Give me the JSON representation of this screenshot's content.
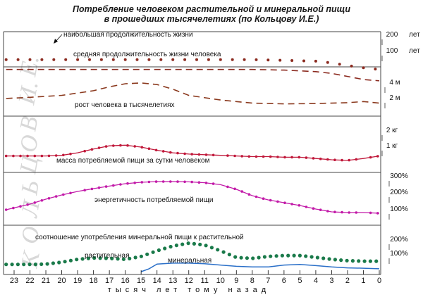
{
  "title_line1": "Потребление человеком растительной и минеральной пищи",
  "title_line2": "в прошедших тысячелетиях (по Кольцову И.Е.)",
  "watermark": [
    "К",
    "О",
    "Л",
    "Ь",
    "Ц",
    "О",
    "В",
    "И.",
    "Е."
  ],
  "colors": {
    "lifespan": "#8b2a1f",
    "height": "#8b3a1f",
    "food_mass": "#c0183a",
    "energy": "#c21aa8",
    "plant": "#1a7a4a",
    "mineral": "#2a6fc8",
    "grid": "#444444"
  },
  "chart_data": {
    "type": "line",
    "title": "Потребление человеком растительной и минеральной пищи в прошедших тысячелетиях (по Кольцову И.Е.)",
    "xlabel": "тысяч лет тому назад",
    "x_ticks": [
      23,
      22,
      21,
      20,
      19,
      18,
      17,
      16,
      15,
      14,
      13,
      12,
      11,
      10,
      9,
      8,
      7,
      6,
      5,
      4,
      3,
      2,
      1,
      0
    ],
    "xlim": [
      23,
      0
    ],
    "panels": [
      {
        "id": "lifespan",
        "unit_ticks": [
          "200",
          "100"
        ],
        "unit_labels": [
          "лет",
          "лет"
        ],
        "series": [
          {
            "name": "наибольшая продолжительность жизни",
            "style": "dotted",
            "x": [
              23.5,
              22,
              20,
              18,
              16,
              14,
              12,
              10,
              8,
              6,
              4,
              3,
              2,
              1,
              0
            ],
            "y": [
              175,
              175,
              175,
              175,
              175,
              175,
              175,
              175,
              175,
              172,
              168,
              160,
              148,
              138,
              130
            ]
          },
          {
            "name": "средняя продолжительность жизни человека",
            "style": "dashed",
            "x": [
              23.5,
              20,
              16,
              12,
              8,
              6,
              4,
              3,
              2,
              1,
              0
            ],
            "y": [
              130,
              130,
              130,
              130,
              130,
              127,
              120,
              112,
              98,
              84,
              78
            ]
          }
        ]
      },
      {
        "id": "height",
        "unit_ticks": [
          "4 м",
          "2 м"
        ],
        "series": [
          {
            "name": "рост человека в тысячелетиях",
            "style": "dashed",
            "x": [
              23.5,
              22,
              20,
              18,
              17,
              16,
              15,
              14,
              13,
              12,
              10,
              8,
              6,
              4,
              2,
              1,
              0
            ],
            "y": [
              2.1,
              2.25,
              2.5,
              3.1,
              3.6,
              4.0,
              4.1,
              3.9,
              3.3,
              2.5,
              1.9,
              1.5,
              1.4,
              1.45,
              1.55,
              1.7,
              1.5
            ]
          }
        ]
      },
      {
        "id": "food_mass",
        "unit_ticks": [
          "2 кг",
          "1 кг"
        ],
        "series": [
          {
            "name": "масса потребляемой пищи за сутки человеком",
            "style": "dot-line",
            "x": [
              23.5,
              22,
              21,
              20,
              19,
              18,
              17,
              16,
              15,
              14,
              13,
              12,
              11,
              10,
              9,
              8,
              7,
              6,
              5,
              4,
              3,
              2,
              1,
              0
            ],
            "y": [
              0.8,
              0.8,
              0.8,
              0.85,
              1.05,
              1.35,
              1.6,
              1.65,
              1.5,
              1.25,
              1.05,
              0.95,
              0.9,
              0.85,
              0.8,
              0.75,
              0.75,
              0.7,
              0.7,
              0.6,
              0.5,
              0.45,
              0.6,
              0.8
            ]
          }
        ]
      },
      {
        "id": "energy",
        "unit_ticks": [
          "300%",
          "200%",
          "100%"
        ],
        "series": [
          {
            "name": "энергетичность потребляемой пищи",
            "style": "dot-line",
            "x": [
              23.5,
              22,
              21,
              20,
              19,
              18,
              17,
              16,
              15,
              14,
              13,
              12,
              11,
              10,
              9,
              8,
              7,
              6,
              5,
              4,
              3,
              2,
              1,
              0
            ],
            "y": [
              90,
              130,
              165,
              195,
              220,
              240,
              258,
              275,
              285,
              290,
              290,
              288,
              282,
              268,
              235,
              190,
              160,
              140,
              120,
              95,
              75,
              70,
              70,
              65
            ]
          }
        ]
      },
      {
        "id": "plant_mineral",
        "panel_title": "соотношение употребления минеральной пищи к растительной",
        "unit_ticks": [
          "200%",
          "100%"
        ],
        "series": [
          {
            "name": "растительная",
            "style": "dotted",
            "x": [
              23.5,
              22,
              21,
              20,
              19,
              18,
              17,
              16,
              15,
              14,
              13,
              12,
              11,
              10,
              9,
              8,
              7,
              6,
              5,
              4,
              3,
              2,
              1,
              0
            ],
            "y": [
              38,
              38,
              40,
              50,
              65,
              72,
              70,
              65,
              80,
              110,
              135,
              150,
              140,
              110,
              75,
              70,
              80,
              85,
              85,
              75,
              65,
              58,
              55,
              55
            ]
          },
          {
            "name": "минеральная",
            "style": "solid",
            "x": [
              15,
              14.5,
              14,
              13,
              12,
              11,
              10,
              9,
              8,
              7,
              6,
              5,
              4,
              3,
              2,
              1,
              0
            ],
            "y": [
              0,
              15,
              40,
              45,
              45,
              42,
              35,
              28,
              25,
              25,
              35,
              38,
              32,
              25,
              20,
              18,
              15
            ]
          }
        ]
      }
    ]
  }
}
